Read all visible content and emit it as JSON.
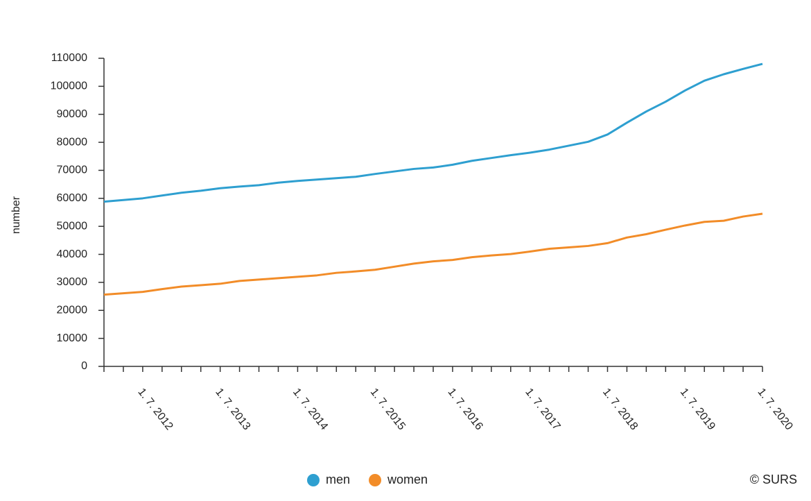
{
  "chart_data": {
    "type": "line",
    "y_label": "number",
    "credit": "© SURS",
    "categories": [
      null,
      null,
      "1. 7. 2012",
      null,
      null,
      null,
      "1. 7. 2013",
      null,
      null,
      null,
      "1. 7. 2014",
      null,
      null,
      null,
      "1. 7. 2015",
      null,
      null,
      null,
      "1. 7. 2016",
      null,
      null,
      null,
      "1. 7. 2017",
      null,
      null,
      null,
      "1. 7. 2018",
      null,
      null,
      null,
      "1. 7. 2019",
      null,
      null,
      null,
      "1. 7. 2020"
    ],
    "series": [
      {
        "name": "men",
        "color": "#2e9fd0",
        "values": [
          58800,
          59400,
          60000,
          61000,
          62000,
          62700,
          63600,
          64200,
          64700,
          65600,
          66200,
          66700,
          67200,
          67700,
          68700,
          69600,
          70500,
          71000,
          72000,
          73400,
          74400,
          75400,
          76300,
          77400,
          78800,
          80200,
          82800,
          87000,
          91000,
          94500,
          98500,
          102000,
          104300,
          106200,
          108000
        ]
      },
      {
        "name": "women",
        "color": "#f28c28",
        "values": [
          25600,
          26100,
          26600,
          27600,
          28500,
          29000,
          29500,
          30500,
          31000,
          31500,
          32000,
          32500,
          33400,
          33900,
          34500,
          35600,
          36700,
          37500,
          38000,
          39000,
          39600,
          40100,
          41000,
          42000,
          42500,
          43000,
          44000,
          46000,
          47200,
          48800,
          50300,
          51600,
          52000,
          53500,
          54500
        ]
      }
    ],
    "ylim": [
      0,
      110000
    ],
    "yticks": [
      0,
      10000,
      20000,
      30000,
      40000,
      50000,
      60000,
      70000,
      80000,
      90000,
      100000,
      110000
    ],
    "legend": "bottom"
  }
}
